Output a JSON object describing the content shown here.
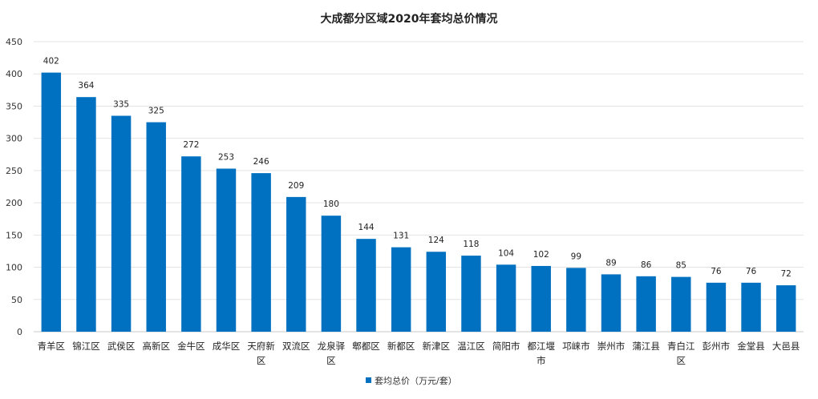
{
  "chart_data": {
    "type": "bar",
    "title": "大成都分区域2020年套均总价情况",
    "ylim": [
      0,
      450
    ],
    "ytick_step": 50,
    "grid": true,
    "legend_position": "bottom",
    "series": [
      {
        "name": "套均总价（万元/套）",
        "color": "#0070C0",
        "values": [
          402,
          364,
          335,
          325,
          272,
          253,
          246,
          209,
          180,
          144,
          131,
          124,
          118,
          104,
          102,
          99,
          89,
          86,
          85,
          76,
          76,
          72
        ]
      }
    ],
    "categories": [
      [
        "青羊区"
      ],
      [
        "锦江区"
      ],
      [
        "武侯区"
      ],
      [
        "高新区"
      ],
      [
        "金牛区"
      ],
      [
        "成华区"
      ],
      [
        "天府新",
        "区"
      ],
      [
        "双流区"
      ],
      [
        "龙泉驿",
        "区"
      ],
      [
        "郫都区"
      ],
      [
        "新都区"
      ],
      [
        "新津区"
      ],
      [
        "温江区"
      ],
      [
        "简阳市"
      ],
      [
        "都江堰",
        "市"
      ],
      [
        "邛崃市"
      ],
      [
        "崇州市"
      ],
      [
        "蒲江县"
      ],
      [
        "青白江",
        "区"
      ],
      [
        "彭州市"
      ],
      [
        "金堂县"
      ],
      [
        "大邑县"
      ]
    ]
  }
}
